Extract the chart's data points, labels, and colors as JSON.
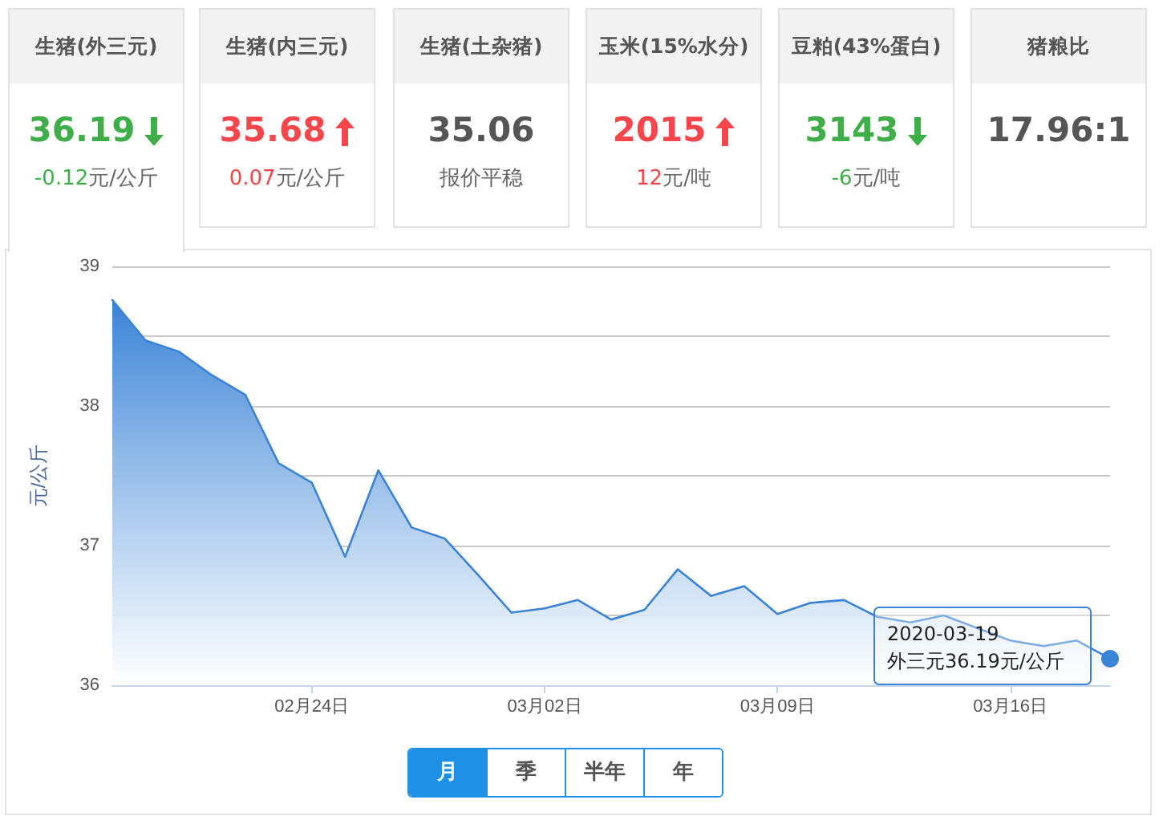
{
  "chart_data": [
    {
      "type": "other",
      "title": "生猪(外三元)",
      "annotations": [
        "36.19",
        "-0.12",
        "元/公斤"
      ],
      "color": "#3fae49"
    },
    {
      "type": "other",
      "title": "生猪(内三元)",
      "annotations": [
        "35.68",
        "0.07",
        "元/公斤"
      ],
      "color": "#f5464b"
    },
    {
      "type": "other",
      "title": "生猪(土杂猪)",
      "annotations": [
        "35.06",
        "报价平稳"
      ],
      "color": "#555555"
    },
    {
      "type": "other",
      "title": "玉米(15%水分)",
      "annotations": [
        "2015",
        "12",
        "元/吨"
      ],
      "color": "#f5464b"
    },
    {
      "type": "other",
      "title": "豆粕(43%蛋白)",
      "annotations": [
        "3143",
        "-6",
        "元/吨"
      ],
      "color": "#3fae49"
    },
    {
      "type": "other",
      "title": "猪粮比",
      "annotations": [
        "17.96:1"
      ],
      "color": "#555555"
    },
    {
      "type": "area",
      "ylabel": "元/公斤",
      "x": [
        "2020-02-18",
        "2020-02-19",
        "2020-02-20",
        "2020-02-21",
        "2020-02-22",
        "2020-02-23",
        "2020-02-24",
        "2020-02-25",
        "2020-02-26",
        "2020-02-27",
        "2020-02-28",
        "2020-02-29",
        "2020-03-01",
        "2020-03-02",
        "2020-03-03",
        "2020-03-04",
        "2020-03-05",
        "2020-03-06",
        "2020-03-07",
        "2020-03-08",
        "2020-03-09",
        "2020-03-10",
        "2020-03-11",
        "2020-03-12",
        "2020-03-13",
        "2020-03-14",
        "2020-03-15",
        "2020-03-16",
        "2020-03-17",
        "2020-03-18",
        "2020-03-19"
      ],
      "values": [
        38.76,
        38.47,
        38.39,
        38.22,
        38.08,
        37.59,
        37.45,
        36.92,
        37.54,
        37.13,
        37.05,
        36.79,
        36.52,
        36.55,
        36.61,
        36.47,
        36.54,
        36.83,
        36.64,
        36.71,
        36.51,
        36.59,
        36.61,
        36.49,
        36.45,
        36.5,
        36.41,
        36.32,
        36.28,
        36.32,
        36.19
      ],
      "color": "#3b83d6",
      "xlim": [
        "2020-02-18",
        "2020-03-19"
      ],
      "xticks": [
        {
          "value": "2020-02-24",
          "label": "02月24日"
        },
        {
          "value": "2020-03-02",
          "label": "03月02日"
        },
        {
          "value": "2020-03-09",
          "label": "03月09日"
        },
        {
          "value": "2020-03-16",
          "label": "03月16日"
        }
      ],
      "ylim": [
        36,
        39
      ],
      "yticks": [
        36,
        37,
        38,
        39
      ],
      "grid": "y",
      "marker": "none",
      "line_style": "solid",
      "annotations": [
        {
          "text": "2020-03-19\n外三元36.19元/公斤",
          "x": "2020-03-19",
          "y": 36.19
        },
        "月",
        "季",
        "半年",
        "年"
      ]
    }
  ]
}
